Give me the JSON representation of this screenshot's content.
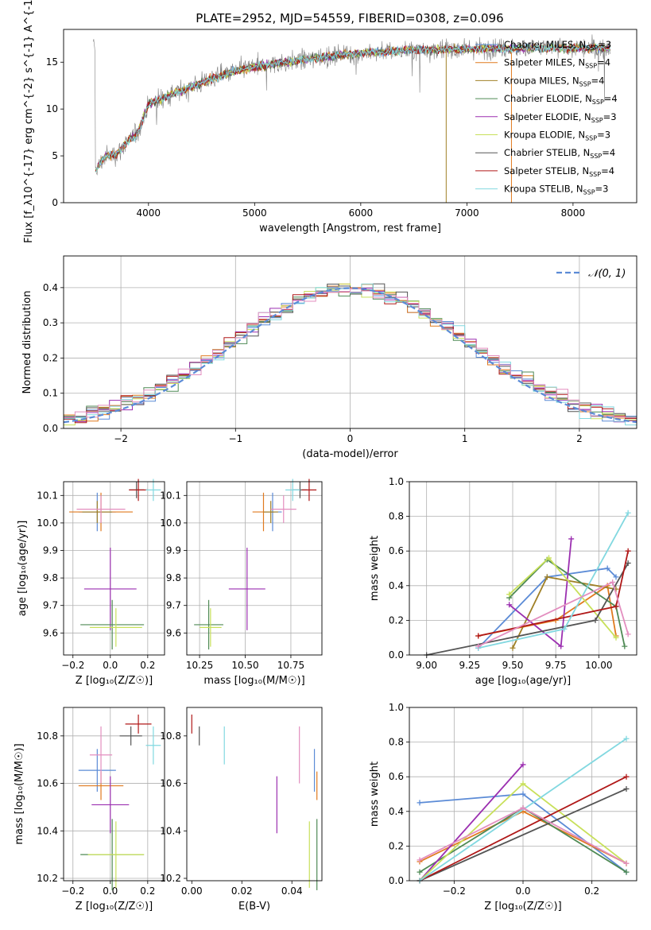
{
  "title": "PLATE=2952, MJD=54559, FIBERID=0308, z=0.096",
  "colors": {
    "blue": "#5b8bd6",
    "orange": "#e07a1f",
    "olive": "#a08026",
    "green": "#4f8a55",
    "purple": "#9b2fb0",
    "yellowgreen": "#c8e05a",
    "darkgray": "#555555",
    "darkred": "#b01818",
    "cyan": "#82d8e0",
    "pink": "#e38ebf",
    "lime": "#b9e36a",
    "gray": "#808080"
  },
  "chart_data": [
    {
      "id": "spectrum",
      "type": "line",
      "xlabel": "wavelength [Angstrom, rest frame]",
      "ylabel": "Flux [f_λ10^{-17} erg cm^{-2} s^{-1} A^{-1}]",
      "xlim": [
        3200,
        8600
      ],
      "ylim": [
        0,
        18.5
      ],
      "xticks": [
        4000,
        5000,
        6000,
        7000,
        8000
      ],
      "yticks": [
        0,
        5,
        10,
        15
      ],
      "legend_position": "right",
      "legend": [
        {
          "name": "Chabrier MILES, N_SSP=3",
          "color": "#5b8bd6"
        },
        {
          "name": "Salpeter MILES, N_SSP=4",
          "color": "#e07a1f"
        },
        {
          "name": "Kroupa MILES, N_SSP=4",
          "color": "#a08026"
        },
        {
          "name": "Chabrier ELODIE, N_SSP=4",
          "color": "#4f8a55"
        },
        {
          "name": "Salpeter ELODIE, N_SSP=3",
          "color": "#9b2fb0"
        },
        {
          "name": "Kroupa ELODIE, N_SSP=3",
          "color": "#c8e05a"
        },
        {
          "name": "Chabrier STELIB, N_SSP=4",
          "color": "#555555"
        },
        {
          "name": "Salpeter STELIB, N_SSP=4",
          "color": "#b01818"
        },
        {
          "name": "Kroupa STELIB, N_SSP=3",
          "color": "#82d8e0"
        }
      ],
      "continuum": [
        [
          3500,
          3.5
        ],
        [
          3600,
          5.0
        ],
        [
          3700,
          5.2
        ],
        [
          3800,
          6.5
        ],
        [
          3900,
          7.5
        ],
        [
          4000,
          10.5
        ],
        [
          4200,
          11.5
        ],
        [
          4500,
          12.8
        ],
        [
          4800,
          14.0
        ],
        [
          5000,
          14.5
        ],
        [
          5300,
          15.0
        ],
        [
          5600,
          15.5
        ],
        [
          6000,
          16.0
        ],
        [
          6500,
          16.3
        ],
        [
          7000,
          16.4
        ],
        [
          7500,
          16.5
        ]
      ]
    },
    {
      "id": "residuals",
      "type": "histogram",
      "xlabel": "(data-model)/error",
      "ylabel": "Normed distribution",
      "xlim": [
        -2.5,
        2.5
      ],
      "ylim": [
        0,
        0.49
      ],
      "xticks": [
        -2,
        -1,
        0,
        1,
        2
      ],
      "yticks": [
        0.0,
        0.1,
        0.2,
        0.3,
        0.4
      ],
      "grid": true,
      "legend": [
        {
          "name": "𝒩(0, 1)",
          "color": "#5b8bd6",
          "style": "dashed"
        }
      ],
      "legend_position": "top-right"
    },
    {
      "id": "age_vs_Z",
      "type": "scatter",
      "xlabel": "Z [log₁₀(Z/Z☉)]",
      "ylabel": "age  [log₁₀(age/yr)]",
      "xlim": [
        -0.25,
        0.29
      ],
      "ylim": [
        9.52,
        10.15
      ],
      "xticks": [
        -0.2,
        0.0,
        0.2
      ],
      "yticks": [
        9.6,
        9.7,
        9.8,
        9.9,
        10.0,
        10.1
      ],
      "grid": true,
      "points": [
        {
          "color": "#5b8bd6",
          "x": -0.07,
          "y": 10.04,
          "xerr": 0.1,
          "yerr": 0.07
        },
        {
          "color": "#e07a1f",
          "x": -0.05,
          "y": 10.04,
          "xerr": 0.17,
          "yerr": 0.07
        },
        {
          "color": "#a08026",
          "x": -0.07,
          "y": 10.04,
          "xerr": 0.08,
          "yerr": 0.04
        },
        {
          "color": "#e38ebf",
          "x": -0.05,
          "y": 10.05,
          "xerr": 0.13,
          "yerr": 0.05
        },
        {
          "color": "#555555",
          "x": 0.14,
          "y": 10.12,
          "xerr": 0.04,
          "yerr": 0.03
        },
        {
          "color": "#b01818",
          "x": 0.15,
          "y": 10.12,
          "xerr": 0.05,
          "yerr": 0.04
        },
        {
          "color": "#82d8e0",
          "x": 0.23,
          "y": 10.12,
          "xerr": 0.04,
          "yerr": 0.04
        },
        {
          "color": "#9b2fb0",
          "x": 0.0,
          "y": 9.76,
          "xerr": 0.14,
          "yerr": 0.15
        },
        {
          "color": "#4f8a55",
          "x": 0.01,
          "y": 9.63,
          "xerr": 0.17,
          "yerr": 0.09
        },
        {
          "color": "#c8e05a",
          "x": 0.03,
          "y": 9.62,
          "xerr": 0.14,
          "yerr": 0.07
        }
      ]
    },
    {
      "id": "age_vs_mass",
      "type": "scatter",
      "xlabel": "mass [log₁₀(M/M☉)]",
      "ylabel": "",
      "xlim": [
        10.18,
        10.92
      ],
      "ylim": [
        9.52,
        10.15
      ],
      "xticks": [
        10.25,
        10.5,
        10.75
      ],
      "yticks": [
        9.6,
        9.7,
        9.8,
        9.9,
        10.0,
        10.1
      ],
      "grid": true,
      "points": [
        {
          "color": "#5b8bd6",
          "x": 10.65,
          "y": 10.04,
          "xerr": 0.05,
          "yerr": 0.07
        },
        {
          "color": "#e07a1f",
          "x": 10.6,
          "y": 10.04,
          "xerr": 0.06,
          "yerr": 0.07
        },
        {
          "color": "#a08026",
          "x": 10.64,
          "y": 10.04,
          "xerr": 0.04,
          "yerr": 0.04
        },
        {
          "color": "#e38ebf",
          "x": 10.71,
          "y": 10.05,
          "xerr": 0.07,
          "yerr": 0.05
        },
        {
          "color": "#555555",
          "x": 10.8,
          "y": 10.12,
          "xerr": 0.04,
          "yerr": 0.03
        },
        {
          "color": "#b01818",
          "x": 10.85,
          "y": 10.12,
          "xerr": 0.04,
          "yerr": 0.04
        },
        {
          "color": "#82d8e0",
          "x": 10.76,
          "y": 10.12,
          "xerr": 0.04,
          "yerr": 0.04
        },
        {
          "color": "#9b2fb0",
          "x": 10.51,
          "y": 9.76,
          "xerr": 0.1,
          "yerr": 0.15
        },
        {
          "color": "#4f8a55",
          "x": 10.3,
          "y": 9.63,
          "xerr": 0.08,
          "yerr": 0.09
        },
        {
          "color": "#c8e05a",
          "x": 10.31,
          "y": 9.62,
          "xerr": 0.06,
          "yerr": 0.07
        }
      ]
    },
    {
      "id": "weight_vs_age",
      "type": "line",
      "xlabel": "age  [log₁₀(age/yr)]",
      "ylabel": "mass weight",
      "xlim": [
        8.9,
        10.22
      ],
      "ylim": [
        0,
        1
      ],
      "xticks": [
        9.0,
        9.25,
        9.5,
        9.75,
        10.0
      ],
      "yticks": [
        0.0,
        0.2,
        0.4,
        0.6,
        0.8,
        1.0
      ],
      "grid": true,
      "series": [
        {
          "color": "#5b8bd6",
          "x": [
            9.3,
            9.7,
            10.05,
            10.1
          ],
          "y": [
            0.04,
            0.45,
            0.5,
            0.45
          ]
        },
        {
          "color": "#e07a1f",
          "x": [
            9.3,
            9.75,
            10.05,
            10.1
          ],
          "y": [
            0.11,
            0.2,
            0.4,
            0.11
          ]
        },
        {
          "color": "#a08026",
          "x": [
            9.5,
            9.7,
            10.1
          ],
          "y": [
            0.04,
            0.45,
            0.38
          ]
        },
        {
          "color": "#4f8a55",
          "x": [
            9.48,
            9.7,
            10.1,
            10.15
          ],
          "y": [
            0.33,
            0.55,
            0.28,
            0.05
          ]
        },
        {
          "color": "#9b2fb0",
          "x": [
            9.48,
            9.78,
            9.84
          ],
          "y": [
            0.29,
            0.05,
            0.67
          ]
        },
        {
          "color": "#c8e05a",
          "x": [
            9.48,
            9.71,
            10.1
          ],
          "y": [
            0.35,
            0.56,
            0.1
          ]
        },
        {
          "color": "#555555",
          "x": [
            9.0,
            9.98,
            10.17
          ],
          "y": [
            0.0,
            0.2,
            0.53
          ]
        },
        {
          "color": "#b01818",
          "x": [
            9.3,
            10.1,
            10.17
          ],
          "y": [
            0.11,
            0.28,
            0.6
          ]
        },
        {
          "color": "#82d8e0",
          "x": [
            9.3,
            9.8,
            10.17
          ],
          "y": [
            0.04,
            0.15,
            0.82
          ]
        },
        {
          "color": "#e38ebf",
          "x": [
            9.3,
            10.08,
            10.17
          ],
          "y": [
            0.05,
            0.42,
            0.12
          ]
        }
      ]
    },
    {
      "id": "mass_vs_Z",
      "type": "scatter",
      "xlabel": "Z [log₁₀(Z/Z☉)]",
      "ylabel": "mass [log₁₀(M/M☉)]",
      "xlim": [
        -0.25,
        0.29
      ],
      "ylim": [
        10.19,
        10.92
      ],
      "xticks": [
        -0.2,
        0.0,
        0.2
      ],
      "yticks": [
        10.2,
        10.4,
        10.6,
        10.8
      ],
      "grid": true,
      "points": [
        {
          "color": "#5b8bd6",
          "x": -0.07,
          "y": 10.655,
          "xerr": 0.1,
          "yerr": 0.09
        },
        {
          "color": "#e07a1f",
          "x": -0.05,
          "y": 10.59,
          "xerr": 0.12,
          "yerr": 0.06
        },
        {
          "color": "#e38ebf",
          "x": -0.05,
          "y": 10.72,
          "xerr": 0.06,
          "yerr": 0.12
        },
        {
          "color": "#555555",
          "x": 0.11,
          "y": 10.8,
          "xerr": 0.06,
          "yerr": 0.04
        },
        {
          "color": "#b01818",
          "x": 0.15,
          "y": 10.85,
          "xerr": 0.07,
          "yerr": 0.04
        },
        {
          "color": "#82d8e0",
          "x": 0.23,
          "y": 10.76,
          "xerr": 0.04,
          "yerr": 0.08
        },
        {
          "color": "#9b2fb0",
          "x": 0.0,
          "y": 10.51,
          "xerr": 0.1,
          "yerr": 0.12
        },
        {
          "color": "#4f8a55",
          "x": 0.01,
          "y": 10.3,
          "xerr": 0.17,
          "yerr": 0.15
        },
        {
          "color": "#c8e05a",
          "x": 0.03,
          "y": 10.3,
          "xerr": 0.15,
          "yerr": 0.14
        }
      ]
    },
    {
      "id": "mass_vs_EBV",
      "type": "scatter",
      "xlabel": "E(B-V)",
      "ylabel": "",
      "xlim": [
        -0.002,
        0.052
      ],
      "ylim": [
        10.19,
        10.92
      ],
      "xticks": [
        0.0,
        0.02,
        0.04
      ],
      "yticks": [
        10.2,
        10.4,
        10.6,
        10.8
      ],
      "points": [
        {
          "color": "#b01818",
          "x": 0.0,
          "y": 10.85,
          "yerr": 0.04
        },
        {
          "color": "#555555",
          "x": 0.003,
          "y": 10.8,
          "yerr": 0.04
        },
        {
          "color": "#82d8e0",
          "x": 0.013,
          "y": 10.76,
          "yerr": 0.08
        },
        {
          "color": "#9b2fb0",
          "x": 0.034,
          "y": 10.51,
          "yerr": 0.12
        },
        {
          "color": "#e38ebf",
          "x": 0.043,
          "y": 10.72,
          "yerr": 0.12
        },
        {
          "color": "#c8e05a",
          "x": 0.047,
          "y": 10.3,
          "yerr": 0.14
        },
        {
          "color": "#5b8bd6",
          "x": 0.049,
          "y": 10.655,
          "yerr": 0.09
        },
        {
          "color": "#e07a1f",
          "x": 0.05,
          "y": 10.59,
          "yerr": 0.06
        },
        {
          "color": "#4f8a55",
          "x": 0.05,
          "y": 10.3,
          "yerr": 0.15
        }
      ]
    },
    {
      "id": "weight_vs_Z",
      "type": "line",
      "xlabel": "Z [log₁₀(Z/Z☉)]",
      "ylabel": "mass weight",
      "xlim": [
        -0.33,
        0.33
      ],
      "ylim": [
        0,
        1
      ],
      "xticks": [
        -0.2,
        0.0,
        0.2
      ],
      "yticks": [
        0.0,
        0.2,
        0.4,
        0.6,
        0.8,
        1.0
      ],
      "grid": true,
      "series": [
        {
          "color": "#5b8bd6",
          "x": [
            -0.3,
            0.0,
            0.3
          ],
          "y": [
            0.45,
            0.5,
            0.05
          ]
        },
        {
          "color": "#e07a1f",
          "x": [
            -0.3,
            0.0,
            0.3
          ],
          "y": [
            0.11,
            0.4,
            0.1
          ]
        },
        {
          "color": "#4f8a55",
          "x": [
            -0.3,
            0.0,
            0.3
          ],
          "y": [
            0.05,
            0.42,
            0.05
          ]
        },
        {
          "color": "#9b2fb0",
          "x": [
            -0.3,
            0.0
          ],
          "y": [
            0.0,
            0.67
          ]
        },
        {
          "color": "#c8e05a",
          "x": [
            -0.3,
            0.0,
            0.3
          ],
          "y": [
            0.0,
            0.56,
            0.1
          ]
        },
        {
          "color": "#555555",
          "x": [
            -0.3,
            0.3
          ],
          "y": [
            0.0,
            0.53
          ]
        },
        {
          "color": "#b01818",
          "x": [
            -0.3,
            0.3
          ],
          "y": [
            0.0,
            0.6
          ]
        },
        {
          "color": "#82d8e0",
          "x": [
            -0.3,
            0.3
          ],
          "y": [
            0.0,
            0.82
          ]
        },
        {
          "color": "#e38ebf",
          "x": [
            -0.3,
            0.0,
            0.3
          ],
          "y": [
            0.12,
            0.42,
            0.1
          ]
        }
      ]
    }
  ]
}
